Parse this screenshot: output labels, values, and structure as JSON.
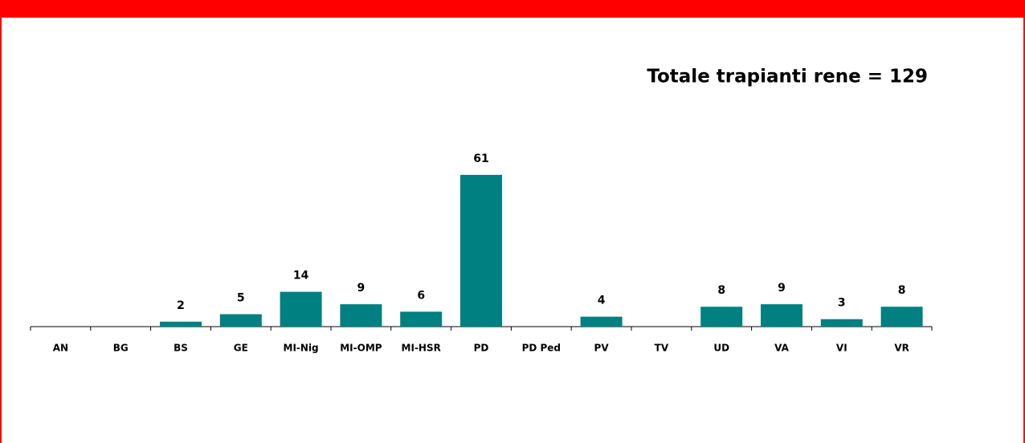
{
  "chart_data": {
    "type": "bar",
    "title": "Totale trapianti rene = 129",
    "categories": [
      "AN",
      "BG",
      "BS",
      "GE",
      "MI-Nig",
      "MI-OMP",
      "MI-HSR",
      "PD",
      "PD Ped",
      "PV",
      "TV",
      "UD",
      "VA",
      "VI",
      "VR"
    ],
    "values": [
      null,
      null,
      2,
      5,
      14,
      9,
      6,
      61,
      null,
      4,
      null,
      8,
      9,
      3,
      8
    ],
    "color": "#008080",
    "ylim": [
      0,
      70
    ]
  }
}
